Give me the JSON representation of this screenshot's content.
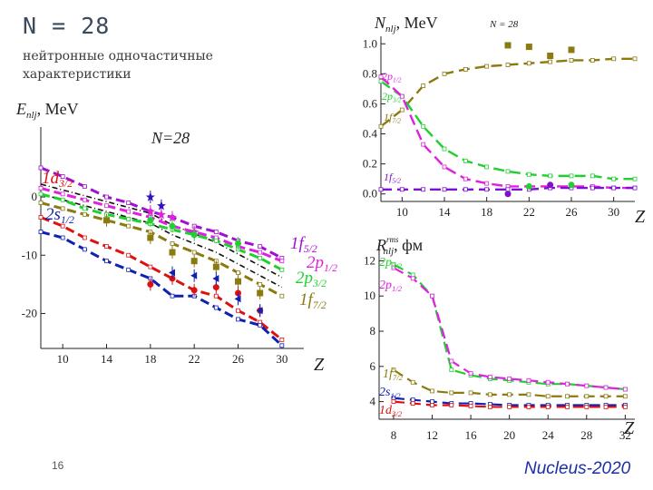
{
  "slide": {
    "title": "N = 28",
    "subtitle": "нейтронные одночастичные характеристики",
    "page_number": "16",
    "conference": "Nucleus-2020"
  },
  "chart_data": [
    {
      "id": "energies",
      "type": "line",
      "title": "N=28",
      "ylabel": "Enlj, MeV",
      "xlabel": "Z",
      "xlim": [
        8,
        32
      ],
      "ylim": [
        -26,
        12
      ],
      "xticks": [
        10,
        14,
        18,
        22,
        26,
        30
      ],
      "yticks": [
        0,
        -10,
        -20
      ],
      "series": [
        {
          "name": "1f5/2",
          "color": "#a010d0",
          "x": [
            8,
            10,
            12,
            14,
            16,
            18,
            20,
            22,
            24,
            26,
            28,
            30
          ],
          "y": [
            5,
            3.5,
            1.8,
            0,
            -1,
            -2.5,
            -3.5,
            -5,
            -6,
            -7.5,
            -8.5,
            -10.5
          ]
        },
        {
          "name": "2p1/2",
          "color": "#e020e0",
          "x": [
            8,
            10,
            12,
            14,
            16,
            18,
            20,
            22,
            24,
            26,
            28,
            30
          ],
          "y": [
            1.5,
            0.5,
            -0.5,
            -1.5,
            -2.5,
            -3.5,
            -5,
            -6,
            -7,
            -8.5,
            -9.5,
            -11
          ]
        },
        {
          "name": "2p3/2",
          "color": "#20d030",
          "x": [
            8,
            10,
            12,
            14,
            16,
            18,
            20,
            22,
            24,
            26,
            28,
            30
          ],
          "y": [
            0.5,
            -0.5,
            -2,
            -3,
            -3.8,
            -4.6,
            -5.6,
            -6.5,
            -7.5,
            -9,
            -10.5,
            -12.5
          ]
        },
        {
          "name": "1f7/2",
          "color": "#8a7a10",
          "x": [
            8,
            10,
            12,
            14,
            16,
            18,
            20,
            22,
            24,
            26,
            28,
            30
          ],
          "y": [
            -1,
            -2,
            -3,
            -4,
            -5,
            -6,
            -8,
            -9.5,
            -11,
            -13,
            -15,
            -17
          ]
        },
        {
          "name": "1d3/2",
          "color": "#e01010",
          "x": [
            8,
            10,
            12,
            14,
            16,
            18,
            20,
            22,
            24,
            26,
            28,
            30
          ],
          "y": [
            -3.5,
            -5,
            -7,
            -8.5,
            -10,
            -12,
            -14,
            -16,
            -17,
            -19.5,
            -21.5,
            -24.5
          ]
        },
        {
          "name": "2s1/2",
          "color": "#1020b0",
          "x": [
            8,
            10,
            12,
            14,
            16,
            18,
            20,
            22,
            24,
            26,
            28,
            30
          ],
          "y": [
            -6,
            -7,
            -9,
            -11,
            -12.5,
            -14,
            -17,
            -17,
            -19,
            -21,
            -22,
            -25.5
          ]
        }
      ],
      "experiment": [
        {
          "name": "1f5/2 exp",
          "color": "#3010c0",
          "shape": "star",
          "x": [
            18,
            19
          ],
          "y": [
            0,
            -1.5
          ]
        },
        {
          "name": "2p1/2 exp",
          "color": "#e020e0",
          "shape": "star",
          "x": [
            18,
            19,
            20,
            22
          ],
          "y": [
            -2.5,
            -3,
            -3.5,
            -6
          ]
        },
        {
          "name": "2p3/2 exp",
          "color": "#20d030",
          "shape": "circle",
          "x": [
            18,
            20,
            22,
            26
          ],
          "y": [
            -4,
            -5,
            -6.5,
            -8
          ]
        },
        {
          "name": "1f7/2 exp",
          "color": "#8a7a10",
          "shape": "square",
          "x": [
            14,
            18,
            20,
            22,
            24,
            26,
            28
          ],
          "y": [
            -4,
            -7,
            -9.5,
            -11,
            -12,
            -14.5,
            -16.5
          ]
        },
        {
          "name": "1d3/2 exp",
          "color": "#e01010",
          "shape": "circle",
          "x": [
            18,
            20,
            22,
            24,
            26,
            28
          ],
          "y": [
            -15,
            -14,
            -16,
            -15.5,
            -16.5,
            -19.5
          ]
        },
        {
          "name": "2s1/2 exp",
          "color": "#1020b0",
          "shape": "triangle",
          "x": [
            20,
            22,
            24,
            26,
            28
          ],
          "y": [
            -13,
            -13.5,
            -14,
            -17.5,
            -19.5
          ]
        }
      ],
      "annotations": [
        "1d3/2",
        "2s1/2",
        "1f5/2",
        "2p1/2",
        "2p3/2",
        "1f7/2"
      ]
    },
    {
      "id": "occupancies",
      "type": "line",
      "title": "N = 28",
      "ylabel": "Nnlj, MeV",
      "xlabel": "Z",
      "xlim": [
        8,
        32
      ],
      "ylim": [
        -0.05,
        1.05
      ],
      "xticks": [
        10,
        14,
        18,
        22,
        26,
        30
      ],
      "yticks": [
        "1.0",
        "0.8",
        "0.6",
        "0.4",
        "0.2",
        "0.0"
      ],
      "series": [
        {
          "name": "1f7/2",
          "color": "#8a7a10",
          "x": [
            8,
            10,
            12,
            14,
            16,
            18,
            20,
            22,
            24,
            26,
            28,
            30,
            32
          ],
          "y": [
            0.45,
            0.56,
            0.72,
            0.8,
            0.83,
            0.85,
            0.86,
            0.87,
            0.88,
            0.89,
            0.89,
            0.9,
            0.9
          ]
        },
        {
          "name": "2p3/2",
          "color": "#20d030",
          "x": [
            8,
            10,
            12,
            14,
            16,
            18,
            20,
            22,
            24,
            26,
            28,
            30,
            32
          ],
          "y": [
            0.75,
            0.65,
            0.45,
            0.3,
            0.22,
            0.18,
            0.15,
            0.13,
            0.12,
            0.12,
            0.12,
            0.1,
            0.1
          ]
        },
        {
          "name": "2p1/2",
          "color": "#e020e0",
          "x": [
            8,
            10,
            12,
            14,
            16,
            18,
            20,
            22,
            24,
            26,
            28,
            30,
            32
          ],
          "y": [
            0.78,
            0.65,
            0.33,
            0.18,
            0.1,
            0.07,
            0.05,
            0.05,
            0.05,
            0.05,
            0.05,
            0.04,
            0.04
          ]
        },
        {
          "name": "1f5/2",
          "color": "#8010d0",
          "x": [
            8,
            10,
            12,
            14,
            16,
            18,
            20,
            22,
            24,
            26,
            28,
            30,
            32
          ],
          "y": [
            0.03,
            0.03,
            0.03,
            0.03,
            0.03,
            0.03,
            0.03,
            0.03,
            0.04,
            0.04,
            0.04,
            0.04,
            0.04
          ]
        }
      ],
      "experiment": [
        {
          "name": "1f7/2 exp",
          "color": "#8a7a10",
          "shape": "square",
          "x": [
            20,
            22,
            24,
            26
          ],
          "y": [
            0.99,
            0.98,
            0.92,
            0.96
          ]
        },
        {
          "name": "2p exp",
          "color": "#20d030",
          "shape": "circle",
          "x": [
            22,
            26
          ],
          "y": [
            0.05,
            0.06
          ]
        },
        {
          "name": "1f5/2 exp",
          "color": "#8010d0",
          "shape": "circle",
          "x": [
            20,
            24
          ],
          "y": [
            0.0,
            0.06
          ]
        }
      ],
      "annotations": [
        "2p1/2",
        "2p3/2",
        "1f7/2",
        "1f5/2"
      ]
    },
    {
      "id": "radii",
      "type": "line",
      "title": "",
      "ylabel": "Rrmsnlj, фм",
      "xlabel": "Z",
      "xlim": [
        6.5,
        33
      ],
      "ylim": [
        3,
        13
      ],
      "xticks": [
        8,
        12,
        16,
        20,
        24,
        28,
        32
      ],
      "yticks": [
        12,
        10,
        8,
        6,
        4
      ],
      "series": [
        {
          "name": "2p3/2",
          "color": "#20d030",
          "x": [
            8,
            10,
            12,
            14,
            16,
            18,
            20,
            22,
            24,
            26,
            28,
            30,
            32
          ],
          "y": [
            11.8,
            11.2,
            10.0,
            5.8,
            5.5,
            5.3,
            5.2,
            5.1,
            5.0,
            5.0,
            4.9,
            4.8,
            4.7
          ]
        },
        {
          "name": "2p1/2",
          "color": "#e020e0",
          "x": [
            8,
            10,
            12,
            14,
            16,
            18,
            20,
            22,
            24,
            26,
            28,
            30,
            32
          ],
          "y": [
            11.6,
            11.0,
            10.0,
            6.3,
            5.6,
            5.4,
            5.3,
            5.2,
            5.1,
            5.0,
            4.9,
            4.8,
            4.7
          ]
        },
        {
          "name": "1f7/2",
          "color": "#8a7a10",
          "x": [
            8,
            10,
            12,
            14,
            16,
            18,
            20,
            22,
            24,
            26,
            28,
            30,
            32
          ],
          "y": [
            5.8,
            5.1,
            4.6,
            4.5,
            4.5,
            4.4,
            4.4,
            4.4,
            4.3,
            4.3,
            4.3,
            4.3,
            4.3
          ]
        },
        {
          "name": "2s1/2",
          "color": "#1020b0",
          "x": [
            8,
            10,
            12,
            14,
            16,
            18,
            20,
            22,
            24,
            26,
            28,
            30,
            32
          ],
          "y": [
            4.2,
            4.1,
            4.0,
            3.9,
            3.9,
            3.85,
            3.8,
            3.8,
            3.8,
            3.8,
            3.8,
            3.8,
            3.8
          ]
        },
        {
          "name": "1d3/2",
          "color": "#e01010",
          "x": [
            8,
            10,
            12,
            14,
            16,
            18,
            20,
            22,
            24,
            26,
            28,
            30,
            32
          ],
          "y": [
            4.0,
            3.9,
            3.8,
            3.8,
            3.75,
            3.7,
            3.7,
            3.7,
            3.7,
            3.7,
            3.7,
            3.7,
            3.7
          ]
        }
      ],
      "annotations": [
        "2p3/2",
        "2p1/2",
        "1f7/2",
        "2s1/2",
        "1d3/2"
      ]
    }
  ]
}
